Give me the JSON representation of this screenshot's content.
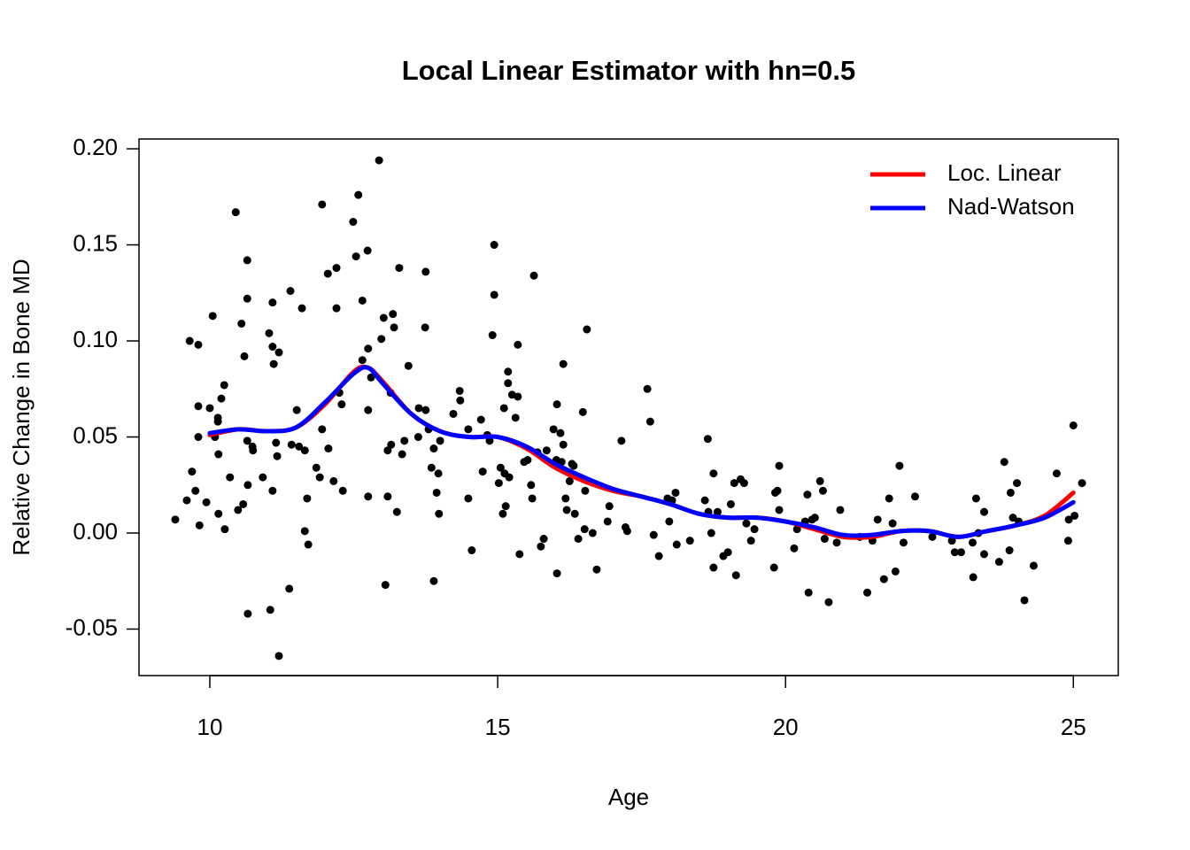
{
  "chart_data": {
    "type": "scatter",
    "title": "Local Linear Estimator with hn=0.5",
    "x_label": "Age",
    "y_label": "Relative Change in Bone MD",
    "xlim": [
      8.77,
      25.78
    ],
    "ylim": [
      -0.0742,
      0.2051
    ],
    "xticks": [
      10,
      15,
      20,
      25
    ],
    "yticks": [
      -0.05,
      {
        "value": 0,
        "label": "0.00"
      },
      0.05,
      {
        "value": 0.1,
        "label": "0.10"
      },
      0.15,
      {
        "value": 0.2,
        "label": "0.20"
      }
    ],
    "legend": "top-right",
    "points": {
      "color": "#000000",
      "x": [
        9.4,
        9.65,
        9.6,
        9.69,
        9.75,
        9.8,
        9.8,
        9.8,
        9.82,
        9.94,
        10.0,
        10.05,
        10.09,
        10.14,
        10.14,
        10.15,
        10.15,
        10.2,
        10.25,
        10.26,
        10.35,
        10.45,
        10.49,
        10.55,
        10.58,
        10.6,
        10.65,
        10.65,
        10.65,
        10.66,
        10.66,
        10.74,
        10.75,
        10.92,
        11.03,
        11.05,
        11.09,
        11.09,
        11.09,
        11.11,
        11.15,
        11.17,
        11.2,
        11.2,
        11.38,
        11.4,
        11.42,
        11.51,
        11.55,
        11.6,
        11.65,
        11.65,
        11.69,
        11.71,
        11.85,
        11.91,
        11.95,
        11.95,
        12.05,
        12.06,
        12.15,
        12.2,
        12.2,
        12.25,
        12.29,
        12.31,
        12.49,
        12.54,
        12.58,
        12.65,
        12.65,
        12.74,
        12.75,
        12.75,
        12.75,
        12.8,
        12.94,
        12.98,
        13.02,
        13.05,
        13.09,
        13.09,
        13.14,
        13.15,
        13.18,
        13.2,
        13.25,
        13.29,
        13.34,
        13.38,
        13.45,
        13.62,
        13.63,
        13.74,
        13.75,
        13.75,
        13.8,
        13.85,
        13.89,
        13.89,
        13.94,
        13.97,
        13.98,
        14.0,
        14.23,
        14.34,
        14.35,
        14.49,
        14.49,
        14.55,
        14.71,
        14.74,
        14.82,
        14.86,
        14.91,
        14.94,
        14.94,
        15.02,
        15.05,
        15.09,
        15.11,
        15.12,
        15.14,
        15.18,
        15.18,
        15.2,
        15.25,
        15.31,
        15.35,
        15.35,
        15.38,
        15.46,
        15.52,
        15.58,
        15.6,
        15.63,
        15.69,
        15.75,
        15.8,
        15.85,
        15.97,
        16.02,
        16.03,
        16.03,
        16.09,
        16.11,
        16.14,
        16.14,
        16.18,
        16.2,
        16.25,
        16.29,
        16.32,
        16.34,
        16.4,
        16.48,
        16.51,
        16.52,
        16.55,
        16.65,
        16.72,
        16.91,
        16.94,
        17.15,
        17.22,
        17.25,
        17.6,
        17.65,
        17.71,
        17.8,
        17.95,
        17.98,
        18.03,
        18.09,
        18.11,
        18.34,
        18.6,
        18.65,
        18.66,
        18.71,
        18.75,
        18.75,
        18.82,
        18.92,
        19.0,
        19.05,
        19.11,
        19.14,
        19.22,
        19.28,
        19.32,
        19.4,
        19.46,
        19.8,
        19.82,
        19.86,
        19.89,
        19.89,
        20.15,
        20.2,
        20.34,
        20.38,
        20.4,
        20.46,
        20.51,
        20.6,
        20.65,
        20.68,
        20.75,
        20.89,
        20.95,
        21.29,
        21.42,
        21.51,
        21.6,
        21.71,
        21.8,
        21.86,
        21.91,
        21.98,
        22.05,
        22.25,
        22.55,
        22.89,
        22.94,
        23.05,
        23.25,
        23.26,
        23.31,
        23.35,
        23.45,
        23.45,
        23.71,
        23.8,
        23.89,
        23.91,
        23.95,
        24.02,
        24.05,
        24.15,
        24.31,
        24.71,
        24.91,
        24.92,
        25.0,
        25.02,
        25.15
      ],
      "values": [
        0.007,
        0.1,
        0.017,
        0.032,
        0.022,
        0.098,
        0.066,
        0.05,
        0.004,
        0.016,
        0.065,
        0.113,
        0.05,
        0.06,
        0.058,
        0.041,
        0.01,
        0.07,
        0.077,
        0.002,
        0.029,
        0.167,
        0.012,
        0.109,
        0.015,
        0.092,
        0.142,
        0.122,
        0.048,
        -0.042,
        0.025,
        0.045,
        0.043,
        0.029,
        0.104,
        -0.04,
        0.12,
        0.097,
        0.022,
        0.088,
        0.047,
        0.04,
        0.094,
        -0.064,
        -0.029,
        0.126,
        0.046,
        0.064,
        0.045,
        0.117,
        0.043,
        0.001,
        0.018,
        -0.006,
        0.034,
        0.029,
        0.171,
        0.054,
        0.135,
        0.044,
        0.027,
        0.138,
        0.117,
        0.073,
        0.067,
        0.022,
        0.162,
        0.144,
        0.176,
        0.121,
        0.09,
        0.147,
        0.096,
        0.019,
        0.064,
        0.081,
        0.194,
        0.101,
        0.112,
        -0.027,
        0.043,
        0.019,
        0.073,
        0.046,
        0.114,
        0.107,
        0.011,
        0.138,
        0.041,
        0.048,
        0.087,
        0.05,
        0.065,
        0.107,
        0.136,
        0.064,
        0.054,
        0.034,
        -0.025,
        0.044,
        0.021,
        0.031,
        0.01,
        0.048,
        0.062,
        0.074,
        0.069,
        0.054,
        0.018,
        -0.009,
        0.059,
        0.032,
        0.051,
        0.048,
        0.103,
        0.15,
        0.124,
        0.026,
        0.034,
        0.01,
        0.065,
        0.031,
        0.014,
        0.084,
        0.078,
        0.029,
        0.072,
        0.06,
        0.098,
        0.071,
        -0.011,
        0.037,
        0.038,
        0.025,
        0.018,
        0.134,
        0.042,
        -0.007,
        -0.003,
        0.043,
        0.054,
        0.038,
        0.067,
        -0.021,
        0.052,
        0.037,
        0.088,
        0.046,
        0.018,
        0.012,
        0.027,
        0.036,
        0.035,
        0.01,
        -0.003,
        0.063,
        0.002,
        0.022,
        0.106,
        0.0,
        -0.019,
        0.006,
        0.014,
        0.048,
        0.003,
        0.001,
        0.075,
        0.058,
        -0.001,
        -0.012,
        0.018,
        0.006,
        0.017,
        0.021,
        -0.006,
        -0.004,
        0.017,
        0.049,
        0.011,
        0.0,
        0.031,
        -0.018,
        0.011,
        -0.012,
        -0.01,
        0.015,
        0.026,
        -0.022,
        0.028,
        0.026,
        0.005,
        -0.004,
        0.002,
        -0.018,
        0.021,
        0.022,
        0.035,
        0.012,
        -0.008,
        0.002,
        0.006,
        0.02,
        -0.031,
        0.007,
        0.008,
        0.027,
        0.022,
        -0.003,
        -0.036,
        -0.005,
        0.012,
        -0.002,
        -0.031,
        -0.004,
        0.007,
        -0.024,
        0.018,
        0.005,
        -0.02,
        0.035,
        -0.005,
        0.019,
        -0.002,
        -0.004,
        -0.01,
        -0.01,
        -0.005,
        -0.023,
        0.018,
        0.0,
        0.011,
        -0.011,
        -0.015,
        0.037,
        -0.009,
        0.021,
        0.008,
        0.026,
        0.006,
        -0.035,
        -0.017,
        0.031,
        -0.004,
        0.007,
        0.056,
        0.009,
        0.026
      ]
    },
    "series": [
      {
        "name": "Loc. Linear",
        "color": "#ff0000",
        "x": [
          10,
          10.5,
          11,
          11.5,
          12,
          12.5,
          12.75,
          13,
          13.5,
          14,
          14.5,
          15,
          15.5,
          16,
          16.5,
          17,
          17.5,
          18,
          18.5,
          19,
          19.5,
          20,
          20.5,
          21,
          21.5,
          22,
          22.5,
          23,
          23.5,
          24,
          24.5,
          25
        ],
        "values": [
          0.051,
          0.054,
          0.053,
          0.055,
          0.067,
          0.084,
          0.086,
          0.079,
          0.062,
          0.053,
          0.05,
          0.05,
          0.044,
          0.034,
          0.027,
          0.022,
          0.019,
          0.015,
          0.01,
          0.008,
          0.008,
          0.006,
          0.002,
          -0.002,
          -0.002,
          0.001,
          0.001,
          -0.002,
          0.001,
          0.004,
          0.009,
          0.021
        ]
      },
      {
        "name": "Nad-Watson",
        "color": "#0000ff",
        "x": [
          10,
          10.5,
          11,
          11.5,
          12,
          12.5,
          12.75,
          13,
          13.5,
          14,
          14.5,
          15,
          15.5,
          16,
          16.5,
          17,
          17.5,
          18,
          18.5,
          19,
          19.5,
          20,
          20.5,
          21,
          21.5,
          22,
          22.5,
          23,
          23.5,
          24,
          24.5,
          25
        ],
        "values": [
          0.052,
          0.054,
          0.053,
          0.055,
          0.068,
          0.083,
          0.086,
          0.078,
          0.062,
          0.053,
          0.05,
          0.05,
          0.045,
          0.036,
          0.029,
          0.023,
          0.019,
          0.015,
          0.01,
          0.008,
          0.008,
          0.006,
          0.003,
          -0.001,
          -0.001,
          0.001,
          0.001,
          -0.002,
          0.001,
          0.004,
          0.008,
          0.016
        ]
      }
    ]
  }
}
